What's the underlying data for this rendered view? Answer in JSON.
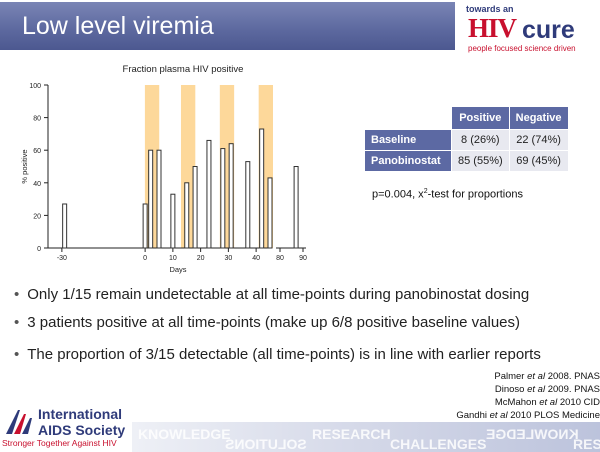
{
  "slide": {
    "title": "Low level viremia"
  },
  "logo": {
    "small_text": "towards an",
    "hiv_text": "HIV",
    "cure_text": "cure",
    "tagline": "people focused science driven"
  },
  "chart_data": {
    "type": "bar",
    "title": "Fraction plasma HIV positive",
    "xlabel": "Days",
    "ylabel": "% positive",
    "ylim": [
      0,
      100
    ],
    "y_ticks": [
      "0",
      "20",
      "40",
      "60",
      "80",
      "100"
    ],
    "x_ticks": [
      "-30",
      "0",
      "10",
      "20",
      "30",
      "40",
      "80",
      "90"
    ],
    "x_break": "between 45 and 80",
    "dosing_periods_days": [
      [
        1,
        4
      ],
      [
        14,
        17
      ],
      [
        28,
        31
      ],
      [
        42,
        45
      ]
    ],
    "bars": [
      {
        "day": -29,
        "value": 27
      },
      {
        "day": 0,
        "value": 27
      },
      {
        "day": 2,
        "value": 60
      },
      {
        "day": 5,
        "value": 60
      },
      {
        "day": 10,
        "value": 33
      },
      {
        "day": 15,
        "value": 40
      },
      {
        "day": 18,
        "value": 50
      },
      {
        "day": 23,
        "value": 66
      },
      {
        "day": 28,
        "value": 61
      },
      {
        "day": 31,
        "value": 64
      },
      {
        "day": 37,
        "value": 53
      },
      {
        "day": 42,
        "value": 73
      },
      {
        "day": 45,
        "value": 43
      },
      {
        "day": 87,
        "value": 50
      }
    ],
    "colors": {
      "bar_fill": "#ffffff",
      "bar_stroke": "#333333",
      "dosing_band": "#fdd89a"
    }
  },
  "table": {
    "headers": [
      "Positive",
      "Negative"
    ],
    "rows": [
      {
        "label": "Baseline",
        "positive": "8 (26%)",
        "negative": "22 (74%)"
      },
      {
        "label": "Panobinostat",
        "positive": "85 (55%)",
        "negative": "69 (45%)"
      }
    ]
  },
  "stats": {
    "prefix": "p=0.004, x",
    "sup": "2",
    "suffix": "-test for proportions"
  },
  "bullets": [
    "Only 1/15 remain undetectable at all time-points during panobinostat dosing",
    "3 patients positive at all time-points (make up 6/8 positive baseline values)",
    "The proportion of 3/15 detectable (all time-points) is in line with earlier reports"
  ],
  "references": [
    {
      "author": "Palmer ",
      "etal": "et al",
      "rest": " 2008. PNAS"
    },
    {
      "author": "Dinoso ",
      "etal": "et al",
      "rest": " 2009. PNAS"
    },
    {
      "author": "McMahon ",
      "etal": "et al",
      "rest": " 2010 CID"
    },
    {
      "author": "Gandhi ",
      "etal": "et al",
      "rest": " 2010 PLOS Medicine"
    }
  ],
  "footer": {
    "org_line1": "International",
    "org_line2": "AIDS Society",
    "org_tagline": "Stronger Together Against HIV",
    "strip_words": [
      "KNOWLEDGE",
      "SOLUTIONS",
      "RESEARCH",
      "CHALLENGES",
      "KNOWLEDGE",
      "RESEARCH",
      "SCIENCE"
    ]
  },
  "colors": {
    "title_bar": "#5e6aa0",
    "accent_red": "#c8102e",
    "accent_navy": "#2f3b7a",
    "table_header": "#5c69a3"
  }
}
